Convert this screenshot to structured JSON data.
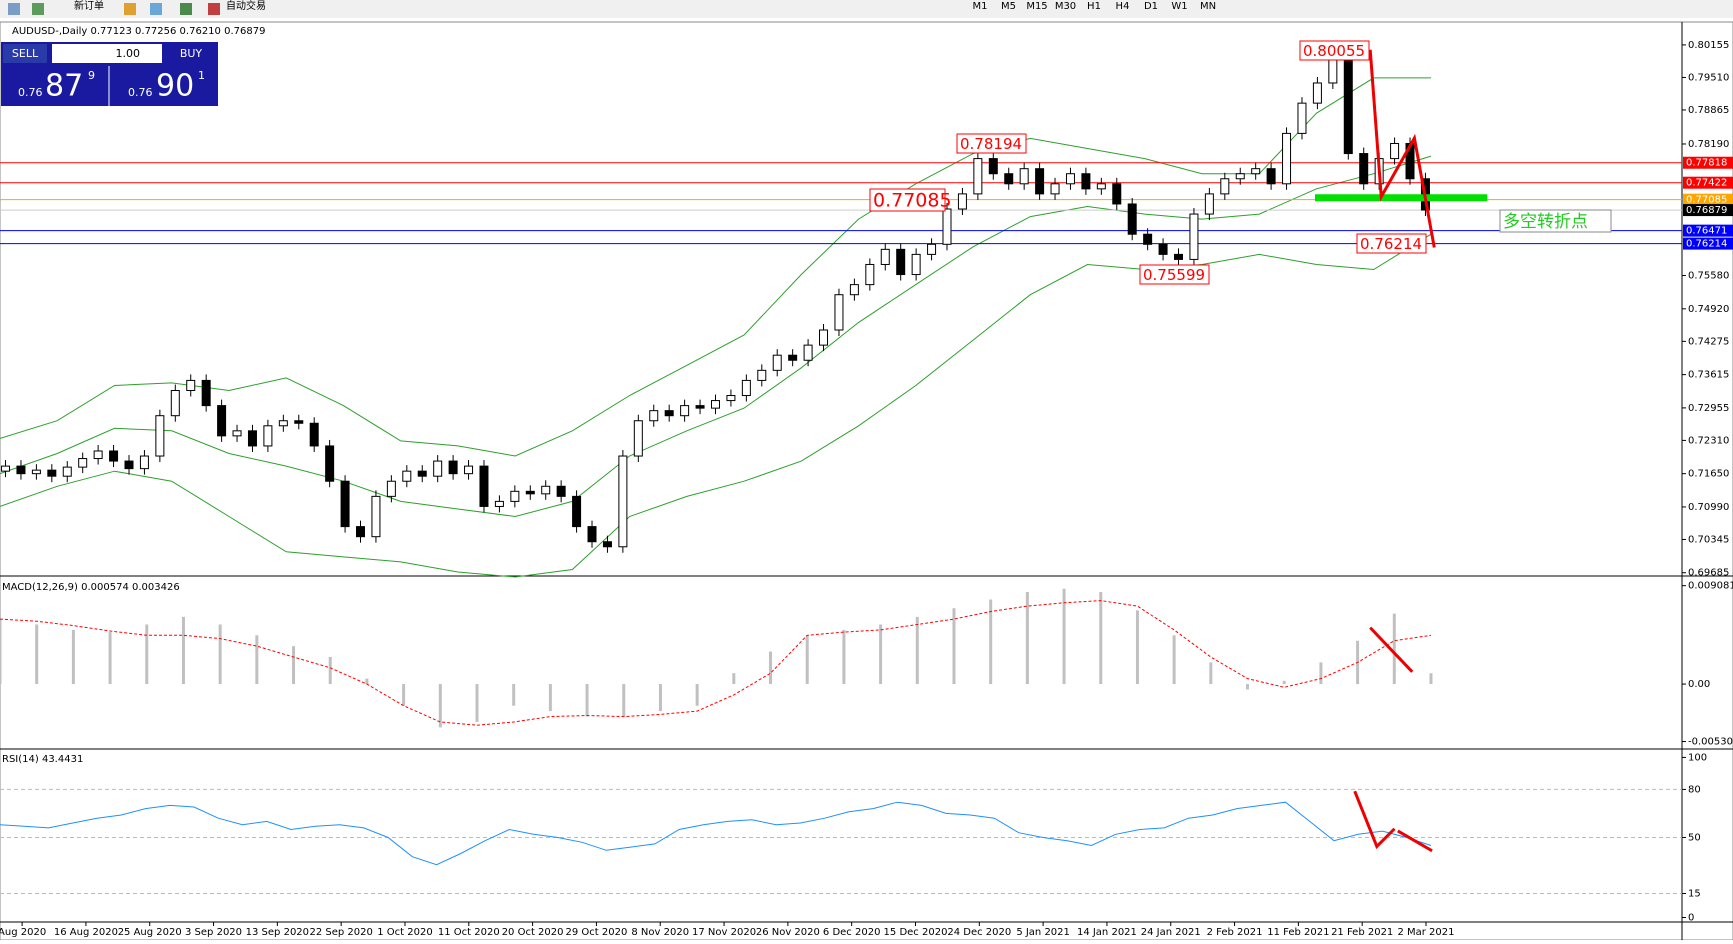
{
  "toolbar": {
    "new_order": "新订单",
    "auto_trade": "自动交易",
    "timeframes": [
      "M1",
      "M5",
      "M15",
      "M30",
      "H1",
      "H4",
      "D1",
      "W1",
      "MN"
    ]
  },
  "trade_panel": {
    "sell": "SELL",
    "buy": "BUY",
    "lot": "1.00",
    "sell_prefix": "0.76",
    "sell_big": "87",
    "sell_small": "9",
    "buy_prefix": "0.76",
    "buy_big": "90",
    "buy_small": "1"
  },
  "time_axis": {
    "labels": [
      "Aug 2020",
      "16 Aug 2020",
      "25 Aug 2020",
      "3 Sep 2020",
      "13 Sep 2020",
      "22 Sep 2020",
      "1 Oct 2020",
      "11 Oct 2020",
      "20 Oct 2020",
      "29 Oct 2020",
      "8 Nov 2020",
      "17 Nov 2020",
      "26 Nov 2020",
      "6 Dec 2020",
      "15 Dec 2020",
      "24 Dec 2020",
      "5 Jan 2021",
      "14 Jan 2021",
      "24 Jan 2021",
      "2 Feb 2021",
      "11 Feb 2021",
      "21 Feb 2021",
      "2 Mar 2021"
    ]
  },
  "chart_data": [
    {
      "type": "candlestick",
      "title": "AUDUSD-,Daily  0.77123 0.77256 0.76210 0.76879",
      "values": [
        0.718,
        0.7165,
        0.7172,
        0.716,
        0.7178,
        0.7195,
        0.721,
        0.719,
        0.7175,
        0.72,
        0.728,
        0.733,
        0.735,
        0.73,
        0.724,
        0.725,
        0.722,
        0.726,
        0.727,
        0.7265,
        0.722,
        0.715,
        0.706,
        0.704,
        0.712,
        0.715,
        0.717,
        0.716,
        0.719,
        0.7165,
        0.718,
        0.71,
        0.711,
        0.713,
        0.7125,
        0.714,
        0.712,
        0.706,
        0.703,
        0.702,
        0.72,
        0.727,
        0.729,
        0.728,
        0.73,
        0.7295,
        0.731,
        0.732,
        0.735,
        0.737,
        0.74,
        0.739,
        0.742,
        0.745,
        0.752,
        0.754,
        0.758,
        0.761,
        0.756,
        0.76,
        0.762,
        0.769,
        0.772,
        0.779,
        0.776,
        0.774,
        0.777,
        0.772,
        0.774,
        0.776,
        0.773,
        0.774,
        0.77,
        0.764,
        0.762,
        0.76,
        0.759,
        0.768,
        0.772,
        0.775,
        0.776,
        0.777,
        0.774,
        0.784,
        0.79,
        0.794,
        0.799,
        0.78,
        0.774,
        0.779,
        0.782,
        0.775,
        0.7688
      ],
      "bands": [
        {
          "name": "upper",
          "color": "#2ca02c",
          "values": [
            0.7235,
            0.727,
            0.734,
            0.7345,
            0.733,
            0.7355,
            0.73,
            0.723,
            0.722,
            0.72,
            0.725,
            0.732,
            0.738,
            0.744,
            0.756,
            0.767,
            0.774,
            0.78,
            0.783,
            0.781,
            0.779,
            0.776,
            0.776,
            0.788,
            0.795,
            0.795
          ]
        },
        {
          "name": "middle",
          "color": "#2ca02c",
          "values": [
            0.7165,
            0.7205,
            0.7255,
            0.725,
            0.7205,
            0.718,
            0.715,
            0.711,
            0.7095,
            0.708,
            0.711,
            0.72,
            0.725,
            0.7295,
            0.7375,
            0.7465,
            0.754,
            0.7615,
            0.7675,
            0.7695,
            0.768,
            0.767,
            0.768,
            0.773,
            0.776,
            0.7795
          ]
        },
        {
          "name": "lower",
          "color": "#2ca02c",
          "values": [
            0.71,
            0.714,
            0.717,
            0.715,
            0.708,
            0.701,
            0.7,
            0.699,
            0.697,
            0.696,
            0.6975,
            0.708,
            0.712,
            0.715,
            0.719,
            0.726,
            0.734,
            0.743,
            0.752,
            0.758,
            0.757,
            0.758,
            0.76,
            0.758,
            0.757,
            0.764
          ]
        }
      ],
      "ylim": [
        0.6964,
        0.8057
      ],
      "yticks": [
        0.80155,
        {
          "value": 0.7951,
          "label": "0.79510"
        },
        0.78865,
        {
          "value": 0.7819,
          "label": "0.78190"
        },
        {
          "value": 0.7558,
          "label": "0.75580"
        },
        {
          "value": 0.7492,
          "label": "0.74920"
        },
        0.74275,
        0.73615,
        0.72955,
        {
          "value": 0.7231,
          "label": "0.72310"
        },
        {
          "value": 0.7165,
          "label": "0.71650"
        },
        {
          "value": 0.7099,
          "label": "0.70990"
        },
        0.70345,
        0.69685
      ],
      "levels": [
        {
          "value": 0.77818,
          "color": "#ff0000"
        },
        {
          "value": 0.77422,
          "color": "#ff0000"
        },
        {
          "value": 0.77085,
          "color": "#ffa500"
        },
        {
          "value": 0.76879,
          "color": "#000000"
        },
        {
          "value": 0.76471,
          "color": "#0000ff"
        },
        {
          "value": 0.76214,
          "color": "#0000ff"
        }
      ],
      "annotations": [
        "0.80055",
        "0.78194",
        "0.77085",
        "0.75599",
        "0.76214",
        "多空转折点"
      ]
    },
    {
      "type": "macd",
      "title": "MACD(12,26,9) 0.000574 0.003426",
      "series": [
        {
          "name": "histogram",
          "color": "#c0c0c0",
          "values": [
            0.006,
            0.0055,
            0.005,
            0.0048,
            0.0055,
            0.0062,
            0.0055,
            0.0045,
            0.0035,
            0.0025,
            0.0005,
            -0.002,
            -0.004,
            -0.0035,
            -0.002,
            -0.0025,
            -0.003,
            -0.003,
            -0.0025,
            -0.002,
            0.001,
            0.003,
            0.0045,
            0.005,
            0.0055,
            0.0062,
            0.007,
            0.0078,
            0.0085,
            0.0088,
            0.0085,
            0.0068,
            0.0045,
            0.002,
            -0.0005,
            0.0003,
            0.002,
            0.004,
            0.0065,
            0.001
          ]
        },
        {
          "name": "signal",
          "color": "#ff0000",
          "values": [
            0.006,
            0.0058,
            0.0054,
            0.0049,
            0.0045,
            0.0045,
            0.0042,
            0.0035,
            0.0025,
            0.0015,
            0.0,
            -0.002,
            -0.0035,
            -0.0038,
            -0.0035,
            -0.003,
            -0.0029,
            -0.003,
            -0.0028,
            -0.0025,
            -0.001,
            0.001,
            0.0045,
            0.0048,
            0.005,
            0.0055,
            0.006,
            0.0067,
            0.0072,
            0.0075,
            0.0077,
            0.0072,
            0.005,
            0.0025,
            0.0005,
            -0.0003,
            0.0005,
            0.002,
            0.004,
            0.0045
          ]
        }
      ],
      "ylim": [
        -0.00581,
        0.00979
      ],
      "yticks": [
        0.009081,
        {
          "value": 0,
          "label": "0.00"
        },
        -0.005306
      ]
    },
    {
      "type": "rsi",
      "title": "RSI(14) 43.4431",
      "color": "#1e90ff",
      "values": [
        58,
        57,
        56,
        59,
        62,
        64,
        68,
        70,
        69,
        62,
        58,
        60,
        55,
        57,
        58,
        56,
        50,
        38,
        33,
        40,
        48,
        55,
        52,
        50,
        47,
        42,
        44,
        46,
        55,
        58,
        60,
        61,
        58,
        59,
        62,
        66,
        68,
        72,
        70,
        65,
        64,
        62,
        53,
        50,
        48,
        45,
        52,
        55,
        56,
        62,
        64,
        68,
        70,
        72,
        60,
        48,
        52,
        54,
        50,
        45
      ],
      "ylim": [
        -5.3,
        104
      ],
      "yticks": [
        100,
        80,
        50,
        15,
        0
      ]
    }
  ]
}
